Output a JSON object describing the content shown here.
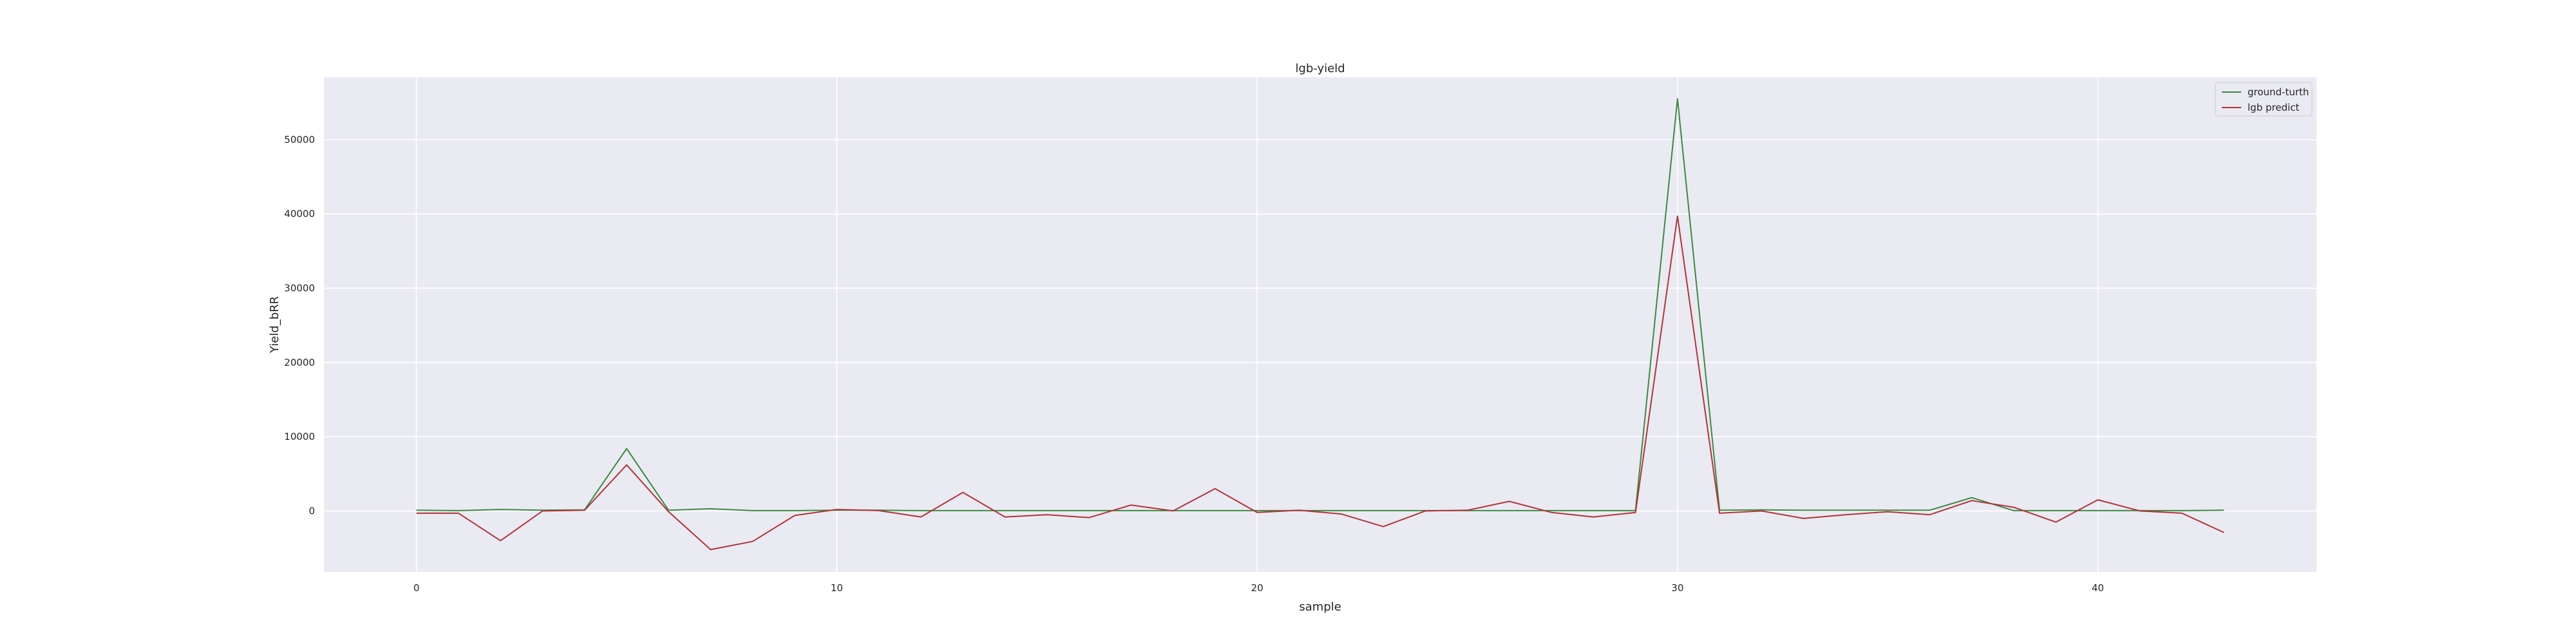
{
  "chart_data": {
    "type": "line",
    "title": "lgb-yield",
    "xlabel": "sample",
    "ylabel": "Yield_bRR",
    "xlim": [
      -2.2,
      45.2
    ],
    "ylim": [
      -8200,
      58400
    ],
    "xticks": [
      0,
      10,
      20,
      30,
      40
    ],
    "yticks": [
      0,
      10000,
      20000,
      30000,
      40000,
      50000
    ],
    "grid": true,
    "legend_position": "top-right",
    "x": [
      0,
      1,
      2,
      3,
      4,
      5,
      6,
      7,
      8,
      9,
      10,
      11,
      12,
      13,
      14,
      15,
      16,
      17,
      18,
      19,
      20,
      21,
      22,
      23,
      24,
      25,
      26,
      27,
      28,
      29,
      30,
      31,
      32,
      33,
      34,
      35,
      36,
      37,
      38,
      39,
      40,
      41,
      42,
      43
    ],
    "series": [
      {
        "name": "ground-turth",
        "color": "#3a8a3f",
        "values": [
          100,
          50,
          200,
          100,
          150,
          8400,
          100,
          300,
          50,
          50,
          100,
          100,
          50,
          50,
          50,
          50,
          50,
          50,
          50,
          50,
          50,
          50,
          50,
          50,
          50,
          50,
          50,
          50,
          50,
          50,
          55500,
          100,
          150,
          100,
          100,
          100,
          100,
          1800,
          50,
          50,
          50,
          50,
          50,
          100
        ]
      },
      {
        "name": "lgb predict",
        "color": "#b3323b",
        "values": [
          -300,
          -300,
          -4000,
          0,
          100,
          6200,
          -100,
          -5200,
          -4100,
          -600,
          200,
          50,
          -800,
          2500,
          -800,
          -500,
          -900,
          800,
          0,
          3000,
          -200,
          100,
          -400,
          -2100,
          0,
          100,
          1300,
          -200,
          -800,
          -200,
          39700,
          -300,
          0,
          -1000,
          -500,
          -100,
          -500,
          1400,
          500,
          -1500,
          1500,
          0,
          -300,
          -2900
        ]
      }
    ]
  }
}
